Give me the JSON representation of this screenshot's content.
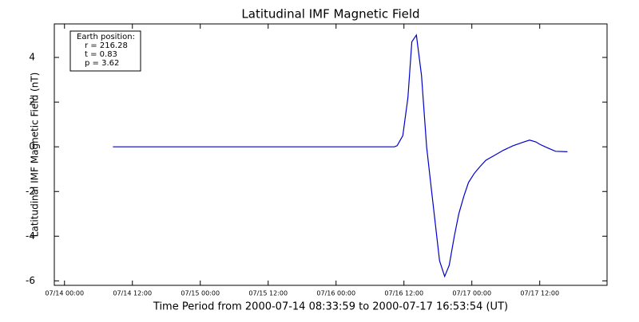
{
  "chart_data": {
    "type": "line",
    "title": "Latitudinal IMF Magnetic Field",
    "y_label": "Latitudinal IMF Magnetic Field (nT)",
    "x_label": "Time Period from 2000-07-14 08:33:59 to 2000-07-17 16:53:54 (UT)",
    "annotation": [
      "Earth position:",
      "r = 216.28",
      "t = 0.83",
      "p = 3.62"
    ],
    "xlim": [
      -1.8,
      95.9
    ],
    "ylim": [
      -6.2,
      5.5
    ],
    "xticks": [
      {
        "value": 0,
        "label": "07/14 00:00"
      },
      {
        "value": 12,
        "label": "07/14 12:00"
      },
      {
        "value": 24,
        "label": "07/15 00:00"
      },
      {
        "value": 36,
        "label": "07/15 12:00"
      },
      {
        "value": 48,
        "label": "07/16 00:00"
      },
      {
        "value": 60,
        "label": "07/16 12:00"
      },
      {
        "value": 72,
        "label": "07/17 00:00"
      },
      {
        "value": 84,
        "label": "07/17 12:00"
      }
    ],
    "yticks": [
      -6,
      -4,
      -2,
      0,
      2,
      4
    ],
    "x": [
      8.57,
      20,
      30,
      40,
      50,
      58.3,
      58.8,
      59.8,
      60.7,
      61.4,
      62.2,
      63.1,
      64,
      64.9,
      66.3,
      67.2,
      68,
      68.9,
      69.7,
      70.6,
      71.4,
      72.4,
      73.4,
      74.5,
      75.9,
      77.6,
      79.3,
      81,
      82.2,
      83.3,
      84.1,
      85.4,
      86.8,
      88.9
    ],
    "series": [
      {
        "color": "#0000cc",
        "values": [
          0,
          0,
          0,
          0,
          0,
          0,
          0.05,
          0.5,
          2.2,
          4.7,
          5.0,
          3.2,
          0,
          -2,
          -5.1,
          -5.8,
          -5.3,
          -4,
          -3,
          -2.2,
          -1.6,
          -1.2,
          -0.9,
          -0.6,
          -0.4,
          -0.15,
          0.05,
          0.2,
          0.3,
          0.22,
          0.1,
          -0.05,
          -0.2,
          -0.22
        ]
      }
    ]
  }
}
